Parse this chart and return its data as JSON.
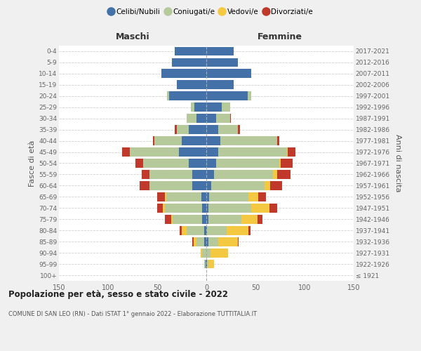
{
  "age_groups": [
    "100+",
    "95-99",
    "90-94",
    "85-89",
    "80-84",
    "75-79",
    "70-74",
    "65-69",
    "60-64",
    "55-59",
    "50-54",
    "45-49",
    "40-44",
    "35-39",
    "30-34",
    "25-29",
    "20-24",
    "15-19",
    "10-14",
    "5-9",
    "0-4"
  ],
  "birth_years": [
    "≤ 1921",
    "1922-1926",
    "1927-1931",
    "1932-1936",
    "1937-1941",
    "1942-1946",
    "1947-1951",
    "1952-1956",
    "1957-1961",
    "1962-1966",
    "1967-1971",
    "1972-1976",
    "1977-1981",
    "1982-1986",
    "1987-1991",
    "1992-1996",
    "1997-2001",
    "2002-2006",
    "2007-2011",
    "2012-2016",
    "2017-2021"
  ],
  "males_celibe": [
    0,
    1,
    0,
    2,
    2,
    4,
    4,
    5,
    14,
    14,
    18,
    28,
    25,
    18,
    10,
    12,
    38,
    30,
    46,
    35,
    32
  ],
  "males_coniugato": [
    0,
    1,
    4,
    8,
    18,
    30,
    38,
    36,
    44,
    44,
    46,
    50,
    28,
    12,
    10,
    4,
    2,
    0,
    0,
    0,
    0
  ],
  "males_vedovo": [
    0,
    0,
    2,
    3,
    5,
    2,
    2,
    1,
    0,
    0,
    0,
    0,
    0,
    0,
    0,
    0,
    0,
    0,
    0,
    0,
    0
  ],
  "males_divorziato": [
    0,
    0,
    0,
    1,
    2,
    6,
    6,
    8,
    10,
    8,
    8,
    8,
    1,
    2,
    0,
    0,
    0,
    0,
    0,
    0,
    0
  ],
  "females_nubile": [
    0,
    1,
    0,
    2,
    1,
    2,
    2,
    3,
    5,
    8,
    10,
    12,
    14,
    12,
    10,
    16,
    42,
    28,
    46,
    32,
    28
  ],
  "females_coniugata": [
    0,
    1,
    4,
    10,
    20,
    34,
    44,
    40,
    54,
    60,
    64,
    70,
    58,
    20,
    14,
    8,
    4,
    0,
    0,
    0,
    0
  ],
  "females_vedova": [
    0,
    6,
    18,
    20,
    22,
    16,
    18,
    10,
    6,
    4,
    2,
    1,
    0,
    0,
    0,
    0,
    0,
    0,
    0,
    0,
    0
  ],
  "females_divorziata": [
    0,
    0,
    0,
    1,
    2,
    5,
    8,
    8,
    12,
    14,
    12,
    8,
    2,
    2,
    1,
    0,
    0,
    0,
    0,
    0,
    0
  ],
  "color_celibe": "#4472a8",
  "color_coniugato": "#b5c99a",
  "color_vedovo": "#f5c842",
  "color_divorziato": "#c0392b",
  "xlim": 150,
  "title": "Popolazione per età, sesso e stato civile - 2022",
  "subtitle": "COMUNE DI SAN LEO (RN) - Dati ISTAT 1° gennaio 2022 - Elaborazione TUTTITALIA.IT",
  "ylabel": "Fasce di età",
  "ylabel2": "Anni di nascita",
  "label_maschi": "Maschi",
  "label_femmine": "Femmine",
  "bg_color": "#f0f0f0",
  "plot_bg_color": "#ffffff",
  "legend_labels": [
    "Celibi/Nubili",
    "Coniugati/e",
    "Vedovi/e",
    "Divorziati/e"
  ]
}
